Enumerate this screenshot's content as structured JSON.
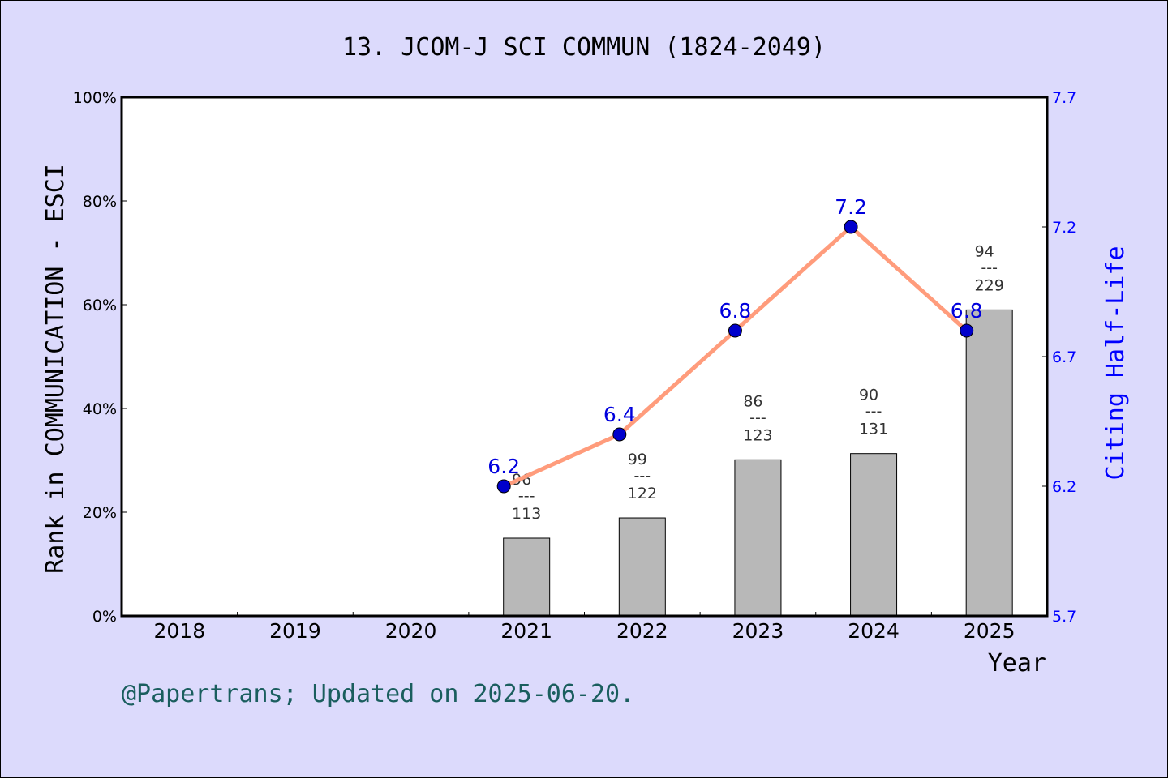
{
  "chart_data": {
    "type": "bar+line",
    "title": "13. JCOM-J SCI COMMUN (1824-2049)",
    "xlabel": "Year",
    "ylabel": "Rank in COMMUNICATION - ESCI",
    "y2label": "Citing Half-Life",
    "categories": [
      "2018",
      "2019",
      "2020",
      "2021",
      "2022",
      "2023",
      "2024",
      "2025"
    ],
    "ylim": [
      0,
      100
    ],
    "yticks": [
      "0%",
      "20%",
      "40%",
      "60%",
      "80%",
      "100%"
    ],
    "y2lim": [
      5.7,
      7.7
    ],
    "y2ticks": [
      "5.7",
      "6.2",
      "6.7",
      "7.2",
      "7.7"
    ],
    "grid": false,
    "bars": {
      "values": [
        null,
        null,
        null,
        15.0,
        18.9,
        30.1,
        31.3,
        59.0
      ],
      "rank": [
        null,
        null,
        null,
        "96",
        "99",
        "86",
        "90",
        "94"
      ],
      "total": [
        null,
        null,
        null,
        "113",
        "122",
        "123",
        "131",
        "229"
      ],
      "separator": "---",
      "color": "#b8b8b8"
    },
    "line": {
      "values": [
        null,
        null,
        null,
        6.2,
        6.4,
        6.8,
        7.2,
        6.8
      ],
      "labels": [
        null,
        null,
        null,
        "6.2",
        "6.4",
        "6.8",
        "7.2",
        "6.8"
      ],
      "line_color": "#ff9c7c",
      "marker_color": "#0000cc"
    }
  },
  "footer": "@Papertrans; Updated on 2025-06-20."
}
